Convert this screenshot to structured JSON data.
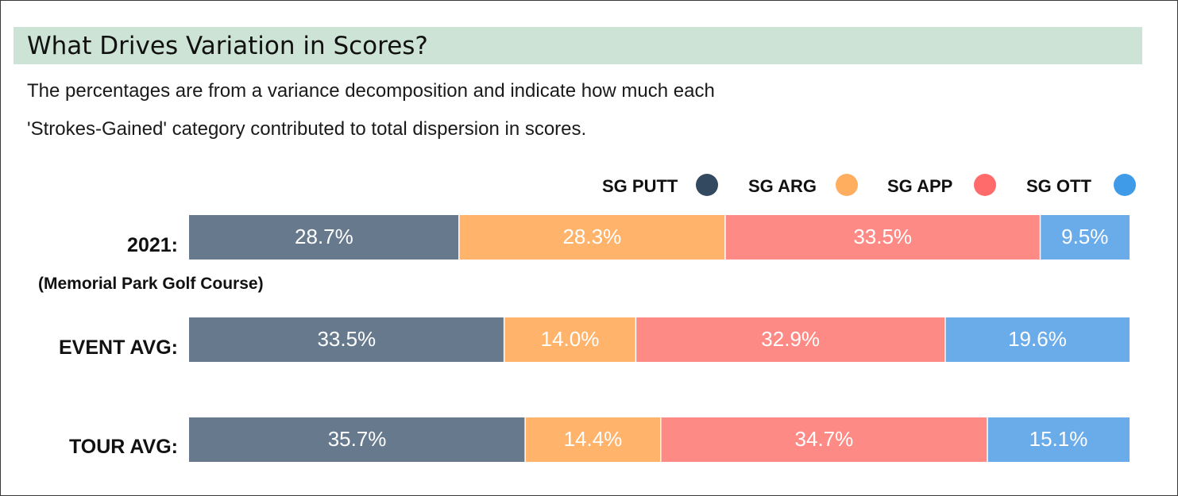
{
  "title": "What Drives Variation in Scores?",
  "subtitle_lines": [
    "The percentages are from a variance decomposition and indicate how much each",
    "'Strokes-Gained' category contributed to total dispersion in scores."
  ],
  "legend": [
    {
      "name": "SG PUTT",
      "color": "#33495f"
    },
    {
      "name": "SG ARG",
      "color": "#ffad5e"
    },
    {
      "name": "SG APP",
      "color": "#ff6b6b"
    },
    {
      "name": "SG OTT",
      "color": "#3f9be8"
    }
  ],
  "chart_data": {
    "type": "bar",
    "orientation": "horizontal",
    "stacked": true,
    "normalized_percent": true,
    "title": "What Drives Variation in Scores?",
    "categories": [
      "2021:",
      "EVENT AVG:",
      "TOUR AVG:"
    ],
    "category_sublabels": [
      "(Memorial Park Golf Course)",
      "",
      ""
    ],
    "series": [
      {
        "name": "SG PUTT",
        "color": "#677a8d",
        "values": [
          28.7,
          33.5,
          35.7
        ],
        "labels": [
          "28.7%",
          "33.5%",
          "35.7%"
        ]
      },
      {
        "name": "SG ARG",
        "color": "#ffb36b",
        "values": [
          28.3,
          14.0,
          14.4
        ],
        "labels": [
          "28.3%",
          "14.0%",
          "14.4%"
        ]
      },
      {
        "name": "SG APP",
        "color": "#fe8a85",
        "values": [
          33.5,
          32.9,
          34.7
        ],
        "labels": [
          "33.5%",
          "32.9%",
          "34.7%"
        ]
      },
      {
        "name": "SG OTT",
        "color": "#6aabe9",
        "values": [
          9.5,
          19.6,
          15.1
        ],
        "labels": [
          "9.5%",
          "19.6%",
          "15.1%"
        ]
      }
    ],
    "legend_position": "top-right",
    "grid": false
  }
}
